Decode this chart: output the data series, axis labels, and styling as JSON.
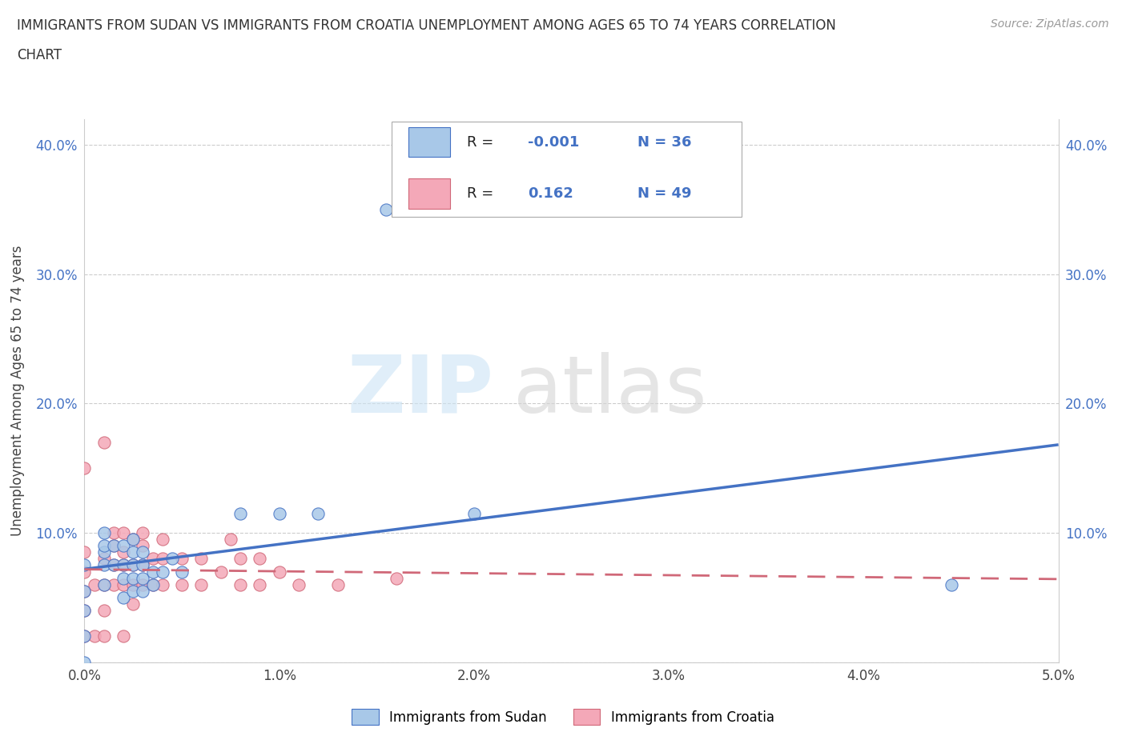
{
  "title_line1": "IMMIGRANTS FROM SUDAN VS IMMIGRANTS FROM CROATIA UNEMPLOYMENT AMONG AGES 65 TO 74 YEARS CORRELATION",
  "title_line2": "CHART",
  "source_text": "Source: ZipAtlas.com",
  "ylabel": "Unemployment Among Ages 65 to 74 years",
  "xlim": [
    0.0,
    0.05
  ],
  "ylim": [
    0.0,
    0.42
  ],
  "xticks": [
    0.0,
    0.01,
    0.02,
    0.03,
    0.04,
    0.05
  ],
  "yticks": [
    0.0,
    0.1,
    0.2,
    0.3,
    0.4
  ],
  "xtick_labels": [
    "0.0%",
    "1.0%",
    "2.0%",
    "3.0%",
    "4.0%",
    "5.0%"
  ],
  "ytick_labels": [
    "",
    "10.0%",
    "20.0%",
    "30.0%",
    "40.0%"
  ],
  "sudan_color": "#a8c8e8",
  "sudan_edge_color": "#4472c4",
  "croatia_color": "#f4a8b8",
  "croatia_edge_color": "#d06878",
  "sudan_line_color": "#4472c4",
  "croatia_line_color": "#d06878",
  "sudan_R": -0.001,
  "sudan_N": 36,
  "croatia_R": 0.162,
  "croatia_N": 49,
  "sudan_x": [
    0.0,
    0.0,
    0.0,
    0.0,
    0.0,
    0.001,
    0.001,
    0.001,
    0.001,
    0.001,
    0.0015,
    0.0015,
    0.002,
    0.002,
    0.002,
    0.002,
    0.0025,
    0.0025,
    0.0025,
    0.0025,
    0.0025,
    0.003,
    0.003,
    0.003,
    0.003,
    0.0035,
    0.0035,
    0.004,
    0.0045,
    0.005,
    0.008,
    0.01,
    0.012,
    0.0155,
    0.02,
    0.0445
  ],
  "sudan_y": [
    0.0,
    0.02,
    0.04,
    0.055,
    0.075,
    0.06,
    0.075,
    0.085,
    0.09,
    0.1,
    0.075,
    0.09,
    0.05,
    0.065,
    0.075,
    0.09,
    0.055,
    0.065,
    0.075,
    0.085,
    0.095,
    0.055,
    0.065,
    0.075,
    0.085,
    0.06,
    0.07,
    0.07,
    0.08,
    0.07,
    0.115,
    0.115,
    0.115,
    0.35,
    0.115,
    0.06
  ],
  "croatia_x": [
    0.0,
    0.0,
    0.0,
    0.0,
    0.0,
    0.0,
    0.0005,
    0.0005,
    0.001,
    0.001,
    0.001,
    0.001,
    0.001,
    0.0015,
    0.0015,
    0.0015,
    0.0015,
    0.002,
    0.002,
    0.002,
    0.002,
    0.002,
    0.0025,
    0.0025,
    0.0025,
    0.0025,
    0.003,
    0.003,
    0.003,
    0.003,
    0.0035,
    0.0035,
    0.004,
    0.004,
    0.004,
    0.005,
    0.005,
    0.006,
    0.006,
    0.007,
    0.0075,
    0.008,
    0.008,
    0.009,
    0.009,
    0.01,
    0.011,
    0.013,
    0.016
  ],
  "croatia_y": [
    0.02,
    0.04,
    0.055,
    0.07,
    0.085,
    0.15,
    0.02,
    0.06,
    0.02,
    0.04,
    0.06,
    0.08,
    0.17,
    0.06,
    0.075,
    0.09,
    0.1,
    0.02,
    0.06,
    0.075,
    0.085,
    0.1,
    0.045,
    0.06,
    0.075,
    0.095,
    0.06,
    0.075,
    0.09,
    0.1,
    0.06,
    0.08,
    0.06,
    0.08,
    0.095,
    0.06,
    0.08,
    0.06,
    0.08,
    0.07,
    0.095,
    0.06,
    0.08,
    0.06,
    0.08,
    0.07,
    0.06,
    0.06,
    0.065
  ]
}
